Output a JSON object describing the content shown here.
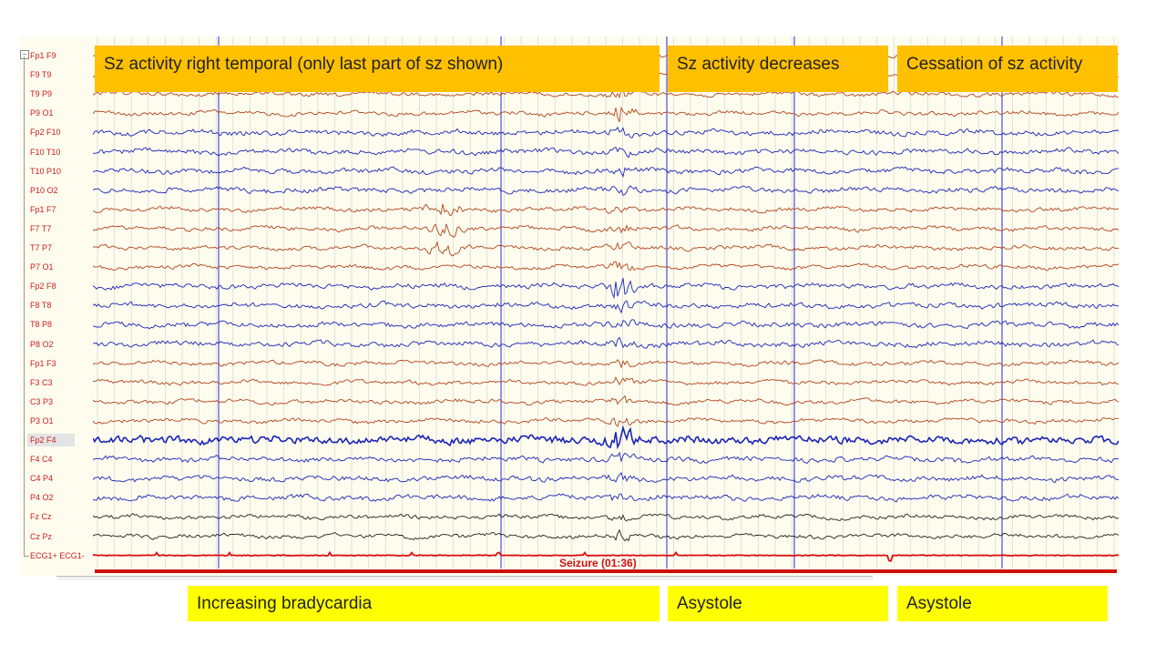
{
  "channels": [
    "Fp1 F9",
    "F9 T9",
    "T9 P9",
    "P9 O1",
    "Fp2 F10",
    "F10 T10",
    "T10 P10",
    "P10 O2",
    "Fp1 F7",
    "F7 T7",
    "T7 P7",
    "P7 O1",
    "Fp2 F8",
    "F8 T8",
    "T8 P8",
    "P8 O2",
    "Fp1 F3",
    "F3 C3",
    "C3 P3",
    "P3 O1",
    "Fp2 F4",
    "F4 C4",
    "C4 P4",
    "P4 O2",
    "Fz Cz",
    "Cz Pz",
    "ECG1+ ECG1-"
  ],
  "channel_colors": [
    "#b3441c",
    "#b3441c",
    "#b3441c",
    "#b3441c",
    "#1c24b8",
    "#1c24b8",
    "#1c24b8",
    "#1c24b8",
    "#b3441c",
    "#b3441c",
    "#b3441c",
    "#b3441c",
    "#1c24b8",
    "#1c24b8",
    "#1c24b8",
    "#1c24b8",
    "#b3441c",
    "#b3441c",
    "#b3441c",
    "#b3441c",
    "#1c24b8",
    "#1c24b8",
    "#1c24b8",
    "#1c24b8",
    "#222222",
    "#222222",
    "#e01010"
  ],
  "selected_channel": "Fp2 F4",
  "event_marker": {
    "label": "Seizure (01:36)",
    "color": "#cc1010"
  },
  "annotations": {
    "sz_right_temporal": "Sz activity right temporal (only last part of sz shown)",
    "sz_decreases": "Sz activity decreases",
    "cessation": "Cessation of sz activity",
    "bradycardia": "Increasing bradycardia",
    "asystole_1": "Asystole",
    "asystole_2": "Asystole"
  },
  "colors": {
    "panel_bg": "#fdfcee",
    "orange_box": "#ffc000",
    "yellow_box": "#ffff00",
    "marker_line": "#2a2adf"
  }
}
